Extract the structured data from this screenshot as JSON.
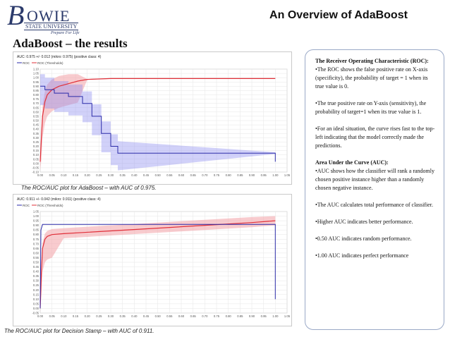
{
  "logo": {
    "letter_b": "B",
    "letters": "OWIE",
    "state": "STATE UNIVERSITY",
    "tagline": "Prepare For Life"
  },
  "slide_title": "An Overview of AdaBoost",
  "section_title": "AdaBoost – the results",
  "plot1": {
    "header": "AUC: 0.975 +/- 0.012 (mikro: 0.975) (positive class: 4)",
    "legend": [
      "ROC",
      "ROC (Thresholds)"
    ],
    "caption": "The ROC/AUC plot for AdaBoost – with AUC of 0.975.",
    "ytick_labels": [
      "1.10",
      "1.05",
      "1.00",
      "0.95",
      "0.90",
      "0.85",
      "0.80",
      "0.75",
      "0.70",
      "0.65",
      "0.60",
      "0.55",
      "0.50",
      "0.45",
      "0.40",
      "0.35",
      "0.30",
      "0.25",
      "0.20",
      "0.15",
      "0.10",
      "0.05",
      "0.00",
      "-0.05",
      "-0.10"
    ],
    "xtick_labels": [
      "0.00",
      "0.05",
      "0.10",
      "0.15",
      "0.20",
      "0.25",
      "0.30",
      "0.35",
      "0.40",
      "0.45",
      "0.50",
      "0.55",
      "0.60",
      "0.65",
      "0.70",
      "0.75",
      "0.80",
      "0.85",
      "0.90",
      "0.95",
      "1.00",
      "1.05"
    ]
  },
  "plot2": {
    "header": "AUC: 0.911 +/- 0.042 (mikro: 0.911) (positive class: 4)",
    "legend": [
      "ROC",
      "ROC (Thresholds)"
    ],
    "caption": "The ROC/AUC plot for Decision Stamp – with AUC of 0.911.",
    "ytick_labels": [
      "1.05",
      "1.00",
      "0.95",
      "0.90",
      "0.85",
      "0.80",
      "0.75",
      "0.70",
      "0.65",
      "0.60",
      "0.55",
      "0.50",
      "0.45",
      "0.40",
      "0.35",
      "0.30",
      "0.25",
      "0.20",
      "0.15",
      "0.10",
      "0.05",
      "0.00",
      "-0.05"
    ],
    "xtick_labels": [
      "0.00",
      "0.05",
      "0.10",
      "0.15",
      "0.20",
      "0.25",
      "0.30",
      "0.35",
      "0.40",
      "0.45",
      "0.50",
      "0.55",
      "0.60",
      "0.65",
      "0.70",
      "0.75",
      "0.80",
      "0.85",
      "0.90",
      "0.95",
      "1.00",
      "1.05"
    ]
  },
  "panel": {
    "roc_heading": "The Receiver Operating Characteristic (ROC):",
    "roc_p1": "•The ROC shows the false positive rate on X-axis (specificity), the probability of target = 1 when its true value is 0.",
    "roc_p2": "•The true positive rate on Y-axis (sensitivity), the probability of target=1 when its true value is 1.",
    "roc_p3": "•For an ideal situation, the curve rises fast to the top-left indicating that the model correctly made the predictions.",
    "auc_heading": "Area Under the Curve (AUC):",
    "auc_p1": "•AUC shows how the classifier will rank a randomly chosen positive instance higher than a randomly chosen negative instance.",
    "auc_p2": "•The AUC calculates total performance of classifier.",
    "auc_p3": "•Higher AUC indicates better performance.",
    "auc_p4": "•0.50 AUC indicates random performance.",
    "auc_p5": "•1.00 AUC indicates perfect performance"
  },
  "colors": {
    "roc_line": "#2a2aa8",
    "roc_band": "#8c8cf0",
    "threshold_line": "#e0303a",
    "threshold_band": "#f2a0a6",
    "logo": "#2b3a6b",
    "panel_border": "#9aa9c7"
  }
}
